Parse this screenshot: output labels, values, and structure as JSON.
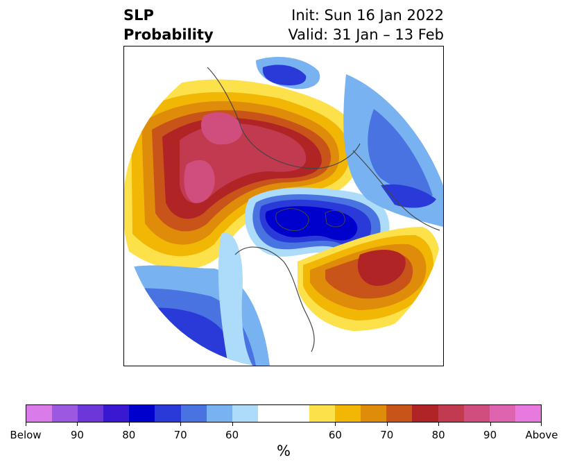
{
  "title": {
    "left_line1": "SLP",
    "left_line2": "Probability",
    "right_line1": "Init: Sun 16 Jan 2022",
    "right_line2": "Valid: 31 Jan – 13 Feb"
  },
  "colorbar": {
    "colors": [
      "#d97be9",
      "#9b58e0",
      "#6b37d8",
      "#3a18d2",
      "#0000cc",
      "#2a3ad8",
      "#4a73e2",
      "#78b2f0",
      "#acdcfa",
      "#ffffff",
      "#ffffff",
      "#fde14b",
      "#f2b705",
      "#df8c0a",
      "#c8541a",
      "#b02426",
      "#c23a50",
      "#d04e7e",
      "#de64b0",
      "#e879de"
    ],
    "tick_labels": [
      "Below",
      "90",
      "80",
      "70",
      "60",
      "60",
      "70",
      "80",
      "90",
      "Above"
    ],
    "unit": "%"
  },
  "map": {
    "projection": "north-polar-stereographic",
    "features": [
      "above-normal-slp-europe-russia",
      "below-normal-slp-arctic-canada",
      "below-normal-slp-north-pacific",
      "above-normal-slp-north-atlantic"
    ]
  }
}
